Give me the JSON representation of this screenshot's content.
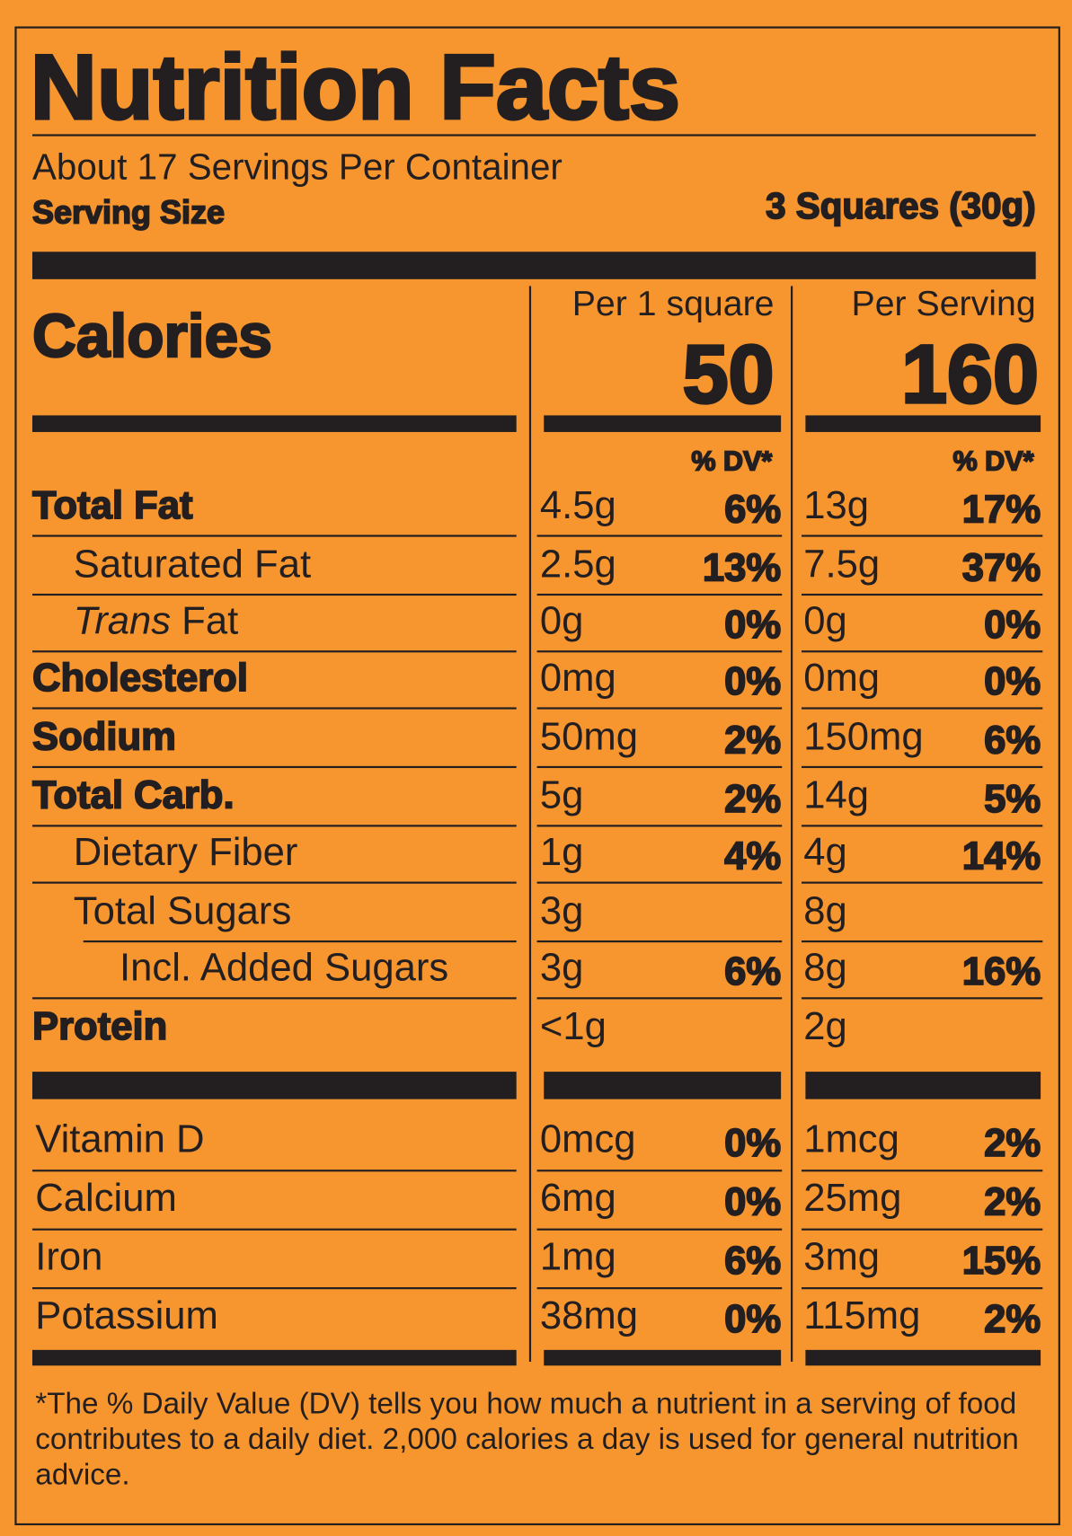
{
  "header": {
    "title": "Nutrition Facts",
    "servings": "About 17 Servings Per Container",
    "serving_size_label": "Serving Size",
    "serving_size": "3 Squares (30g)"
  },
  "calories": {
    "label": "Calories",
    "columns": [
      {
        "heading": "Per 1 square",
        "value": "50",
        "dv_heading": "% DV*"
      },
      {
        "heading": "Per Serving",
        "value": "160",
        "dv_heading": "% DV*"
      }
    ]
  },
  "rows": [
    {
      "label": "Total Fat",
      "bold": true,
      "indent": 0,
      "values": [
        {
          "amount": "4.5g",
          "dv": "6%"
        },
        {
          "amount": "13g",
          "dv": "17%"
        }
      ]
    },
    {
      "label": "Saturated Fat",
      "indent": 1,
      "values": [
        {
          "amount": "2.5g",
          "dv": "13%"
        },
        {
          "amount": "7.5g",
          "dv": "37%"
        }
      ]
    },
    {
      "label_italic": "Trans",
      "label": "Fat",
      "indent": 1,
      "values": [
        {
          "amount": "0g",
          "dv": "0%"
        },
        {
          "amount": "0g",
          "dv": "0%"
        }
      ]
    },
    {
      "label": "Cholesterol",
      "bold": true,
      "indent": 0,
      "values": [
        {
          "amount": "0mg",
          "dv": "0%"
        },
        {
          "amount": "0mg",
          "dv": "0%"
        }
      ]
    },
    {
      "label": "Sodium",
      "bold": true,
      "indent": 0,
      "values": [
        {
          "amount": "50mg",
          "dv": "2%"
        },
        {
          "amount": "150mg",
          "dv": "6%"
        }
      ]
    },
    {
      "label": "Total Carb.",
      "bold": true,
      "indent": 0,
      "values": [
        {
          "amount": "5g",
          "dv": "2%"
        },
        {
          "amount": "14g",
          "dv": "5%"
        }
      ]
    },
    {
      "label": "Dietary Fiber",
      "indent": 1,
      "values": [
        {
          "amount": "1g",
          "dv": "4%"
        },
        {
          "amount": "4g",
          "dv": "14%"
        }
      ]
    },
    {
      "label": "Total Sugars",
      "indent": 1,
      "values": [
        {
          "amount": "3g"
        },
        {
          "amount": "8g"
        }
      ]
    },
    {
      "label": "Incl. Added Sugars",
      "indent": 2,
      "values": [
        {
          "amount": "3g",
          "dv": "6%"
        },
        {
          "amount": "8g",
          "dv": "16%"
        }
      ]
    },
    {
      "label": "Protein",
      "bold": true,
      "indent": 0,
      "values": [
        {
          "amount": "<1g"
        },
        {
          "amount": "2g"
        }
      ]
    }
  ],
  "vitamins": [
    {
      "label": "Vitamin D",
      "values": [
        {
          "amount": "0mcg",
          "dv": "0%"
        },
        {
          "amount": "1mcg",
          "dv": "2%"
        }
      ]
    },
    {
      "label": "Calcium",
      "values": [
        {
          "amount": "6mg",
          "dv": "0%"
        },
        {
          "amount": "25mg",
          "dv": "2%"
        }
      ]
    },
    {
      "label": "Iron",
      "values": [
        {
          "amount": "1mg",
          "dv": "6%"
        },
        {
          "amount": "3mg",
          "dv": "15%"
        }
      ]
    },
    {
      "label": "Potassium",
      "values": [
        {
          "amount": "38mg",
          "dv": "0%"
        },
        {
          "amount": "115mg",
          "dv": "2%"
        }
      ]
    }
  ],
  "footnote": "*The % Daily Value (DV) tells you how much a nutrient in a serving of food contributes to a daily diet. 2,000 calories a day is used for general nutrition advice."
}
